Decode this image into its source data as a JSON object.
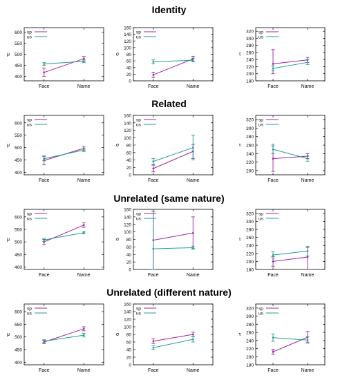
{
  "sections": [
    {
      "title": "Identity"
    },
    {
      "title": "Related"
    },
    {
      "title": "Unrelated (same nature)"
    },
    {
      "title": "Unrelated (different nature)"
    }
  ],
  "colors": {
    "sp": "#a020a0",
    "us": "#1f9e8e"
  },
  "chart_data": [
    {
      "type": "line",
      "section": "Identity",
      "ylabel": "μ",
      "ylim": [
        380,
        620
      ],
      "yticks": [
        400,
        450,
        500,
        550,
        600
      ],
      "categories": [
        "Face",
        "Name"
      ],
      "legend_position": "top-left",
      "series": [
        {
          "name": "sp",
          "values": [
            418,
            480
          ],
          "err_low": [
            400,
            470
          ],
          "err_high": [
            438,
            490
          ]
        },
        {
          "name": "us",
          "values": [
            456,
            468
          ],
          "err_low": [
            450,
            462
          ],
          "err_high": [
            462,
            476
          ]
        }
      ]
    },
    {
      "type": "line",
      "section": "Identity",
      "ylabel": "σ",
      "ylim": [
        0,
        160
      ],
      "yticks": [
        0,
        20,
        40,
        60,
        80,
        100,
        120,
        140,
        160
      ],
      "categories": [
        "Face",
        "Name"
      ],
      "legend_position": "top-left",
      "series": [
        {
          "name": "sp",
          "values": [
            18,
            66
          ],
          "err_low": [
            10,
            58
          ],
          "err_high": [
            26,
            74
          ]
        },
        {
          "name": "us",
          "values": [
            57,
            62
          ],
          "err_low": [
            51,
            57
          ],
          "err_high": [
            63,
            68
          ]
        }
      ]
    },
    {
      "type": "line",
      "section": "Identity",
      "ylabel": "τ",
      "ylim": [
        180,
        330
      ],
      "yticks": [
        180,
        200,
        220,
        240,
        260,
        280,
        300,
        320
      ],
      "categories": [
        "Face",
        "Name"
      ],
      "legend_position": "top-left",
      "series": [
        {
          "name": "sp",
          "values": [
            228,
            239
          ],
          "err_low": [
            200,
            232
          ],
          "err_high": [
            268,
            246
          ]
        },
        {
          "name": "us",
          "values": [
            215,
            232
          ],
          "err_low": [
            208,
            226
          ],
          "err_high": [
            222,
            240
          ]
        }
      ]
    },
    {
      "type": "line",
      "section": "Related",
      "ylabel": "μ",
      "ylim": [
        390,
        630
      ],
      "yticks": [
        400,
        450,
        500,
        550,
        600
      ],
      "categories": [
        "Face",
        "Name"
      ],
      "legend_position": "top-left",
      "series": [
        {
          "name": "sp",
          "values": [
            448,
            497
          ],
          "err_low": [
            430,
            490
          ],
          "err_high": [
            466,
            504
          ]
        },
        {
          "name": "us",
          "values": [
            455,
            490
          ],
          "err_low": [
            447,
            484
          ],
          "err_high": [
            463,
            496
          ]
        }
      ]
    },
    {
      "type": "line",
      "section": "Related",
      "ylabel": "σ",
      "ylim": [
        0,
        160
      ],
      "yticks": [
        0,
        20,
        40,
        60,
        80,
        100,
        120,
        140,
        160
      ],
      "categories": [
        "Face",
        "Name"
      ],
      "legend_position": "top-left",
      "series": [
        {
          "name": "sp",
          "values": [
            17,
            63
          ],
          "err_low": [
            8,
            44
          ],
          "err_high": [
            26,
            82
          ]
        },
        {
          "name": "us",
          "values": [
            36,
            73
          ],
          "err_low": [
            28,
            40
          ],
          "err_high": [
            44,
            107
          ]
        }
      ]
    },
    {
      "type": "line",
      "section": "Related",
      "ylabel": "τ",
      "ylim": [
        190,
        330
      ],
      "yticks": [
        200,
        220,
        240,
        260,
        280,
        300,
        320
      ],
      "categories": [
        "Face",
        "Name"
      ],
      "legend_position": "top-left",
      "series": [
        {
          "name": "sp",
          "values": [
            228,
            234
          ],
          "err_low": [
            198,
            228
          ],
          "err_high": [
            258,
            240
          ]
        },
        {
          "name": "us",
          "values": [
            250,
            228
          ],
          "err_low": [
            240,
            222
          ],
          "err_high": [
            262,
            234
          ]
        }
      ]
    },
    {
      "type": "line",
      "section": "Unrelated (same nature)",
      "ylabel": "μ",
      "ylim": [
        390,
        630
      ],
      "yticks": [
        400,
        450,
        500,
        550,
        600
      ],
      "categories": [
        "Face",
        "Name"
      ],
      "legend_position": "top-left",
      "series": [
        {
          "name": "sp",
          "values": [
            500,
            567
          ],
          "err_low": [
            490,
            558
          ],
          "err_high": [
            510,
            576
          ]
        },
        {
          "name": "us",
          "values": [
            508,
            537
          ],
          "err_low": [
            502,
            532
          ],
          "err_high": [
            514,
            542
          ]
        }
      ]
    },
    {
      "type": "line",
      "section": "Unrelated (same nature)",
      "ylabel": "σ",
      "ylim": [
        0,
        160
      ],
      "yticks": [
        0,
        20,
        40,
        60,
        80,
        100,
        120,
        140,
        160
      ],
      "categories": [
        "Face",
        "Name"
      ],
      "legend_position": "top-left",
      "series": [
        {
          "name": "sp",
          "values": [
            78,
            97
          ],
          "err_low": [
            0,
            55
          ],
          "err_high": [
            155,
            140
          ]
        },
        {
          "name": "us",
          "values": [
            55,
            58
          ],
          "err_low": [
            0,
            54
          ],
          "err_high": [
            155,
            62
          ]
        }
      ]
    },
    {
      "type": "line",
      "section": "Unrelated (same nature)",
      "ylabel": "τ",
      "ylim": [
        180,
        330
      ],
      "yticks": [
        180,
        200,
        220,
        240,
        260,
        280,
        300,
        320
      ],
      "categories": [
        "Face",
        "Name"
      ],
      "legend_position": "top-left",
      "series": [
        {
          "name": "sp",
          "values": [
            200,
            211
          ],
          "err_low": [
            188,
            180
          ],
          "err_high": [
            212,
            235
          ]
        },
        {
          "name": "us",
          "values": [
            216,
            226
          ],
          "err_low": [
            208,
            214
          ],
          "err_high": [
            224,
            238
          ]
        }
      ]
    },
    {
      "type": "line",
      "section": "Unrelated (different nature)",
      "ylabel": "μ",
      "ylim": [
        390,
        630
      ],
      "yticks": [
        400,
        450,
        500,
        550,
        600
      ],
      "categories": [
        "Face",
        "Name"
      ],
      "legend_position": "top-left",
      "series": [
        {
          "name": "sp",
          "values": [
            480,
            532
          ],
          "err_low": [
            474,
            524
          ],
          "err_high": [
            486,
            540
          ]
        },
        {
          "name": "us",
          "values": [
            483,
            507
          ],
          "err_low": [
            477,
            500
          ],
          "err_high": [
            489,
            514
          ]
        }
      ]
    },
    {
      "type": "line",
      "section": "Unrelated (different nature)",
      "ylabel": "σ",
      "ylim": [
        0,
        160
      ],
      "yticks": [
        0,
        20,
        40,
        60,
        80,
        100,
        120,
        140,
        160
      ],
      "categories": [
        "Face",
        "Name"
      ],
      "legend_position": "top-left",
      "series": [
        {
          "name": "sp",
          "values": [
            62,
            80
          ],
          "err_low": [
            56,
            74
          ],
          "err_high": [
            68,
            86
          ]
        },
        {
          "name": "us",
          "values": [
            45,
            67
          ],
          "err_low": [
            40,
            60
          ],
          "err_high": [
            50,
            74
          ]
        }
      ]
    },
    {
      "type": "line",
      "section": "Unrelated (different nature)",
      "ylabel": "τ",
      "ylim": [
        180,
        330
      ],
      "yticks": [
        180,
        200,
        220,
        240,
        260,
        280,
        300,
        320
      ],
      "categories": [
        "Face",
        "Name"
      ],
      "legend_position": "top-left",
      "series": [
        {
          "name": "sp",
          "values": [
            212,
            248
          ],
          "err_low": [
            206,
            236
          ],
          "err_high": [
            218,
            262
          ]
        },
        {
          "name": "us",
          "values": [
            247,
            241
          ],
          "err_low": [
            238,
            233
          ],
          "err_high": [
            256,
            249
          ]
        }
      ]
    }
  ]
}
